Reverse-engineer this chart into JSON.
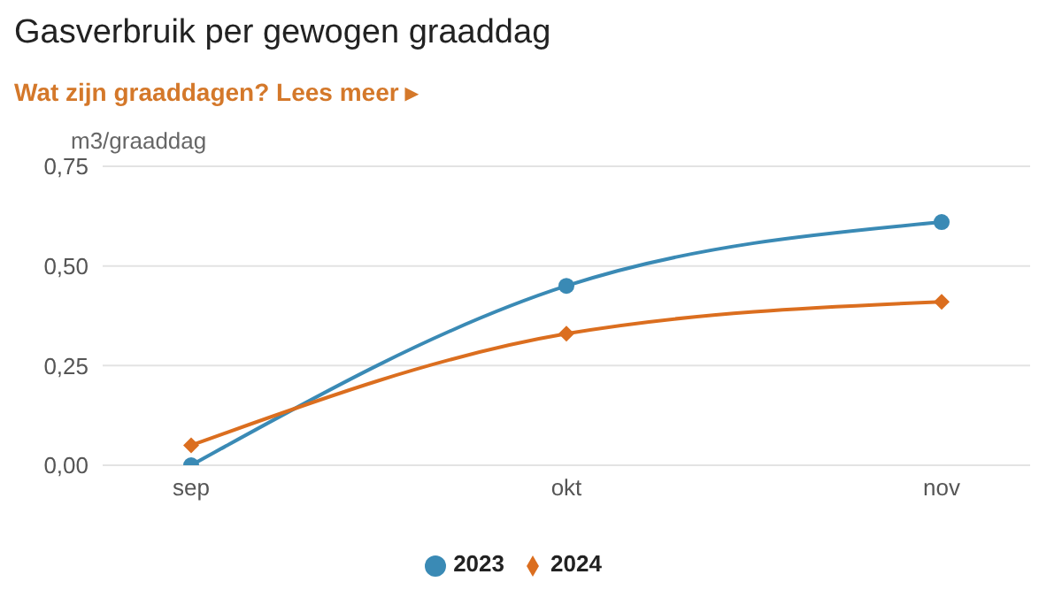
{
  "chart_data": {
    "type": "line",
    "title": "Gasverbruik per gewogen graaddag",
    "subtitle": "Wat zijn graaddagen? Lees meer ▸",
    "ylabel": "m3/graaddag",
    "categories": [
      "sep",
      "okt",
      "nov"
    ],
    "series": [
      {
        "name": "2023",
        "color": "#3a8ab5",
        "values": [
          0,
          0.45,
          0.61
        ],
        "marker": "circle"
      },
      {
        "name": "2024",
        "color": "#db6e1f",
        "values": [
          0.05,
          0.33,
          0.41
        ],
        "marker": "diamond"
      }
    ],
    "ylim": [
      0,
      0.75
    ],
    "yticks": [
      {
        "value": 0,
        "label": "0,00"
      },
      {
        "value": 0.25,
        "label": "0,25"
      },
      {
        "value": 0.5,
        "label": "0,50"
      },
      {
        "value": 0.75,
        "label": "0,75"
      }
    ],
    "grid": "y",
    "legend": "bottom",
    "line_style": "solid"
  }
}
